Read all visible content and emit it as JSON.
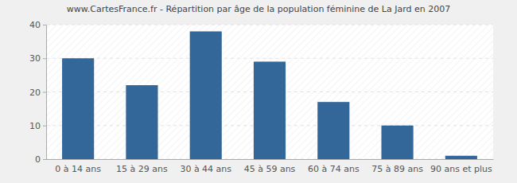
{
  "chart_data": {
    "type": "bar",
    "title": "www.CartesFrance.fr - Répartition par âge de la population féminine de La Jard en 2007",
    "categories": [
      "0 à 14 ans",
      "15 à 29 ans",
      "30 à 44 ans",
      "45 à 59 ans",
      "60 à 74 ans",
      "75 à 89 ans",
      "90 ans et plus"
    ],
    "values": [
      30,
      22,
      38,
      29,
      17,
      10,
      1
    ],
    "color": "#336699",
    "ylim": [
      0,
      40
    ],
    "yticks": [
      0,
      10,
      20,
      30,
      40
    ],
    "grid": true
  }
}
